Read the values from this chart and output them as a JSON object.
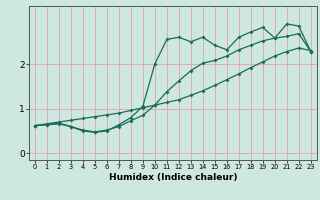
{
  "xlabel": "Humidex (Indice chaleur)",
  "background_color": "#cce8e0",
  "line_color": "#1a6b5a",
  "grid_color": "#e8a0a0",
  "xlim": [
    -0.5,
    23.5
  ],
  "ylim": [
    -0.15,
    3.3
  ],
  "yticks": [
    0,
    1,
    2
  ],
  "xticks": [
    0,
    1,
    2,
    3,
    4,
    5,
    6,
    7,
    8,
    9,
    10,
    11,
    12,
    13,
    14,
    15,
    16,
    17,
    18,
    19,
    20,
    21,
    22,
    23
  ],
  "line1_x": [
    0,
    1,
    2,
    3,
    4,
    5,
    6,
    7,
    8,
    9,
    10,
    11,
    12,
    13,
    14,
    15,
    16,
    17,
    18,
    19,
    20,
    21,
    22,
    23
  ],
  "line1_y": [
    0.62,
    0.66,
    0.7,
    0.74,
    0.78,
    0.82,
    0.86,
    0.9,
    0.96,
    1.02,
    1.08,
    1.14,
    1.2,
    1.3,
    1.4,
    1.52,
    1.65,
    1.78,
    1.92,
    2.05,
    2.18,
    2.28,
    2.36,
    2.3
  ],
  "line2_x": [
    0,
    1,
    2,
    3,
    4,
    5,
    6,
    7,
    8,
    9,
    10,
    11,
    12,
    13,
    14,
    15,
    16,
    17,
    18,
    19,
    20,
    21,
    22,
    23
  ],
  "line2_y": [
    0.62,
    0.64,
    0.66,
    0.6,
    0.52,
    0.48,
    0.52,
    0.6,
    0.73,
    0.85,
    1.08,
    1.38,
    1.62,
    1.85,
    2.02,
    2.08,
    2.18,
    2.32,
    2.42,
    2.52,
    2.58,
    2.62,
    2.68,
    2.28
  ],
  "line3_x": [
    0,
    1,
    2,
    3,
    4,
    5,
    6,
    7,
    8,
    9,
    10,
    11,
    12,
    13,
    14,
    15,
    16,
    17,
    18,
    19,
    20,
    21,
    22,
    23
  ],
  "line3_y": [
    0.62,
    0.64,
    0.68,
    0.6,
    0.5,
    0.47,
    0.5,
    0.64,
    0.8,
    1.05,
    2.0,
    2.55,
    2.6,
    2.5,
    2.6,
    2.42,
    2.32,
    2.6,
    2.72,
    2.82,
    2.58,
    2.9,
    2.85,
    2.28
  ],
  "marker": "D",
  "markersize": 2.0,
  "linewidth": 0.9
}
